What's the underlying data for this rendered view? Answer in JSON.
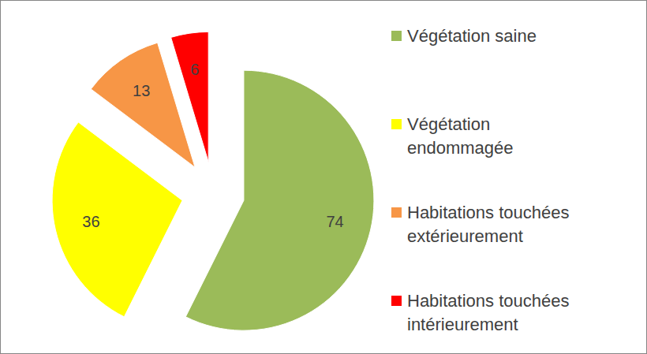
{
  "chart_data": {
    "type": "pie",
    "categories": [
      "Végétation saine",
      "Végétation endommagée",
      "Habitations touchées extérieurement",
      "Habitations touchées intérieurement"
    ],
    "values": [
      74,
      36,
      13,
      6
    ],
    "colors": [
      "#9bbb59",
      "#ffff00",
      "#f79646",
      "#ff0000"
    ],
    "data_labels": true,
    "legend": "right"
  }
}
